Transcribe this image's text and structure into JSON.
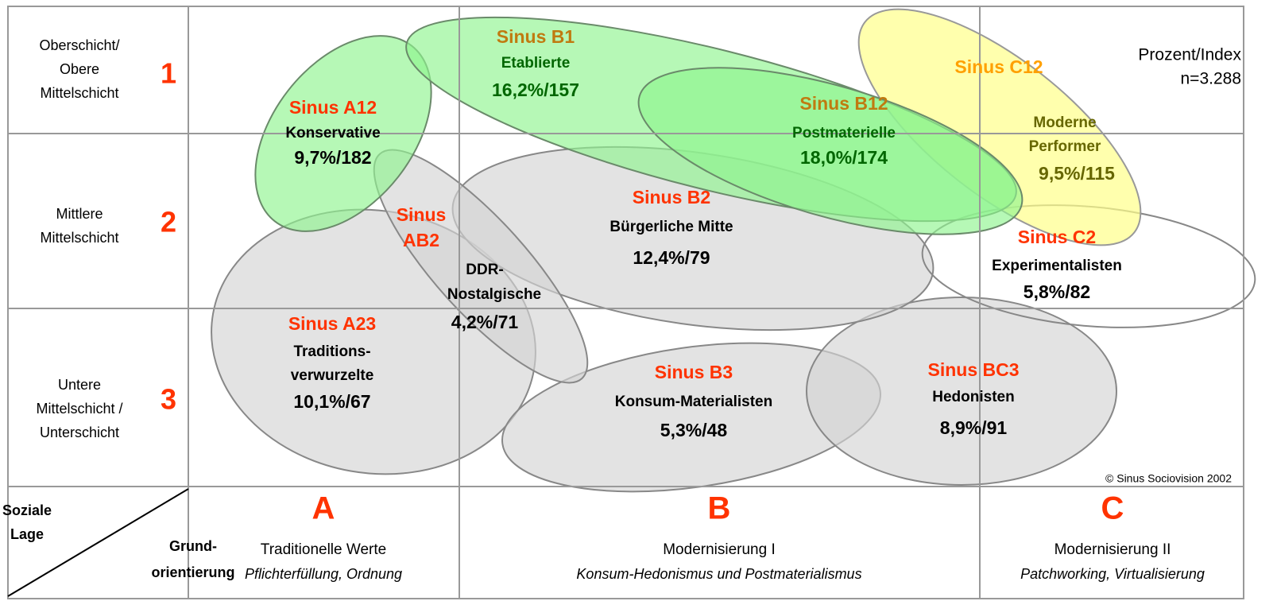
{
  "note": [
    "Prozent/Index",
    "n=3.288"
  ],
  "copyright": "© Sinus Sociovision 2002",
  "corner": {
    "top": [
      "Soziale",
      "Lage"
    ],
    "bottom": [
      "Grund-",
      "orientierung"
    ]
  },
  "rows": [
    {
      "label": [
        "Oberschicht/",
        "Obere",
        "Mittelschicht"
      ],
      "number": "1"
    },
    {
      "label": [
        "Mittlere",
        "Mittelschicht"
      ],
      "number": "2"
    },
    {
      "label": [
        "Untere",
        "Mittelschicht /",
        "Unterschicht"
      ],
      "number": "3"
    }
  ],
  "columns": [
    {
      "letter": "A",
      "title": "Traditionelle Werte",
      "subtitle": "Pflichterfüllung, Ordnung"
    },
    {
      "letter": "B",
      "title": "Modernisierung I",
      "subtitle": "Konsum-Hedonismus und Postmaterialismus"
    },
    {
      "letter": "C",
      "title": "Modernisierung II",
      "subtitle": "Patchworking, Virtualisierung"
    }
  ],
  "milieus": [
    {
      "name": [
        "Sinus A23"
      ],
      "description": [
        "Traditions-",
        "verwurzelte"
      ],
      "value": "10,1%/67"
    },
    {
      "name": [
        "Sinus B3"
      ],
      "description": [
        "Konsum-Materialisten"
      ],
      "value": "5,3%/48"
    },
    {
      "name": [
        "Sinus BC3"
      ],
      "description": [
        "Hedonisten"
      ],
      "value": "8,9%/91"
    },
    {
      "name": [
        "Sinus B2"
      ],
      "description": [
        "Bürgerliche Mitte"
      ],
      "value": "12,4%/79"
    },
    {
      "name": [
        "Sinus",
        "AB2"
      ],
      "description": [
        "DDR-",
        "Nostalgische"
      ],
      "value": "4,2%/71"
    },
    {
      "name": [
        "Sinus C2"
      ],
      "description": [
        "Experimentalisten"
      ],
      "value": "5,8%/82"
    },
    {
      "name": [
        "Sinus A12"
      ],
      "description": [
        "Konservative"
      ],
      "value": "9,7%/182"
    },
    {
      "name": [
        "Sinus C12"
      ],
      "description": [
        "Moderne",
        "Performer"
      ],
      "value": "9,5%/115"
    },
    {
      "name": [
        "Sinus B1"
      ],
      "description": [
        "Etablierte"
      ],
      "value": "16,2%/157"
    },
    {
      "name": [
        "Sinus B12"
      ],
      "description": [
        "Postmaterielle"
      ],
      "value": "18,0%/174"
    }
  ]
}
